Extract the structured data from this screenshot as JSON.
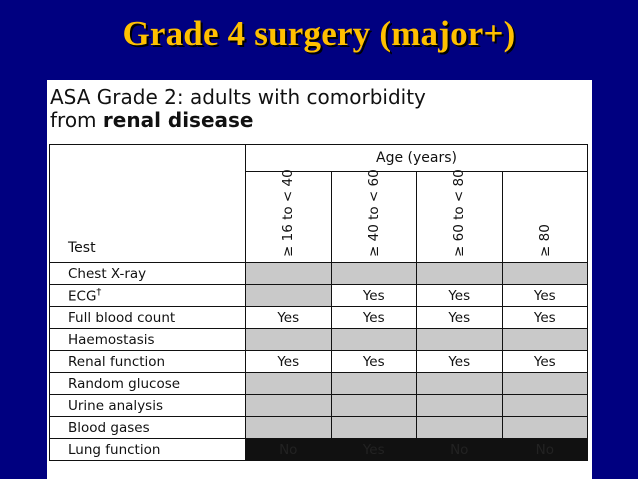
{
  "slide": {
    "title": "Grade 4 surgery (major+)"
  },
  "document": {
    "heading_part1": "ASA Grade 2: adults with comorbidity",
    "heading_part2": "from ",
    "heading_bold": "renal disease",
    "table": {
      "test_header": "Test",
      "age_header": "Age (years)",
      "age_bands": [
        "≥ 16 to < 40",
        "≥ 40 to < 60",
        "≥ 60 to < 80",
        "≥ 80"
      ],
      "rows": [
        {
          "test": "Chest X-ray",
          "marker": "",
          "values": [
            "",
            "",
            "",
            ""
          ],
          "shaded": [
            true,
            true,
            true,
            true
          ]
        },
        {
          "test": "ECG",
          "marker": "†",
          "values": [
            "",
            "Yes",
            "Yes",
            "Yes"
          ],
          "shaded": [
            true,
            false,
            false,
            false
          ]
        },
        {
          "test": "Full blood count",
          "marker": "",
          "values": [
            "Yes",
            "Yes",
            "Yes",
            "Yes"
          ],
          "shaded": [
            false,
            false,
            false,
            false
          ]
        },
        {
          "test": "Haemostasis",
          "marker": "",
          "values": [
            "",
            "",
            "",
            ""
          ],
          "shaded": [
            true,
            true,
            true,
            true
          ]
        },
        {
          "test": "Renal function",
          "marker": "",
          "values": [
            "Yes",
            "Yes",
            "Yes",
            "Yes"
          ],
          "shaded": [
            false,
            false,
            false,
            false
          ]
        },
        {
          "test": "Random glucose",
          "marker": "",
          "values": [
            "",
            "",
            "",
            ""
          ],
          "shaded": [
            true,
            true,
            true,
            true
          ]
        },
        {
          "test": "Urine analysis",
          "marker": "",
          "values": [
            "",
            "",
            "",
            ""
          ],
          "shaded": [
            true,
            true,
            true,
            true
          ]
        },
        {
          "test": "Blood gases",
          "marker": "",
          "values": [
            "",
            "",
            "",
            ""
          ],
          "shaded": [
            true,
            true,
            true,
            true
          ]
        },
        {
          "test": "Lung function",
          "marker": "",
          "values": [
            "No",
            "Yes",
            "No",
            "No"
          ],
          "shaded": [
            false,
            false,
            false,
            false
          ]
        }
      ]
    }
  },
  "colors": {
    "background": "#000080",
    "title": "#FFC000",
    "shade": "#c9c9c9"
  }
}
